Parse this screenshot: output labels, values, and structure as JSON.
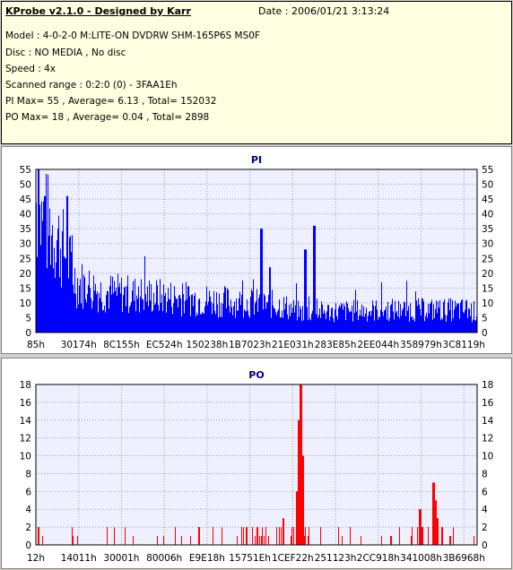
{
  "header": {
    "title": "KProbe v2.1.0 - Designed by Karr",
    "date": "Date : 2006/01/21 3:13:24",
    "lines": [
      "Model : 4-0-2-0 M:LITE-ON DVDRW SHM-165P6S MS0F",
      "Disc : NO MEDIA , No disc",
      "Speed : 4x",
      "Scanned range : 0:2:0 (0) - 3FAA1Eh",
      "PI Max= 55 , Average= 6.13 , Total= 152032",
      "PO Max= 18 , Average= 0.04 , Total= 2898"
    ]
  },
  "chart_data": [
    {
      "type": "bar",
      "title": "PI",
      "color": "#0000ff",
      "ylim": [
        0,
        55
      ],
      "yticks": [
        0,
        5,
        10,
        15,
        20,
        25,
        30,
        35,
        40,
        45,
        50,
        55
      ],
      "xticks": [
        "85h",
        "30174h",
        "8C155h",
        "EC524h",
        "150238h",
        "1B7023h",
        "21E031h",
        "283E85h",
        "2EE044h",
        "358979h",
        "3C8119h"
      ],
      "profile": [
        [
          0,
          52
        ],
        [
          0.01,
          45
        ],
        [
          0.04,
          40
        ],
        [
          0.07,
          30
        ],
        [
          0.09,
          20
        ],
        [
          0.15,
          16
        ],
        [
          0.3,
          14
        ],
        [
          0.45,
          12
        ],
        [
          0.55,
          11
        ],
        [
          0.6,
          8
        ],
        [
          0.8,
          9
        ],
        [
          0.97,
          9
        ],
        [
          1,
          8
        ]
      ],
      "spikes": [
        [
          0.005,
          55
        ],
        [
          0.02,
          46
        ],
        [
          0.07,
          46
        ],
        [
          0.51,
          35
        ],
        [
          0.63,
          36
        ],
        [
          0.61,
          28
        ],
        [
          0.53,
          22
        ]
      ]
    },
    {
      "type": "bar",
      "title": "PO",
      "color": "#ff0000",
      "ylim": [
        0,
        18
      ],
      "yticks": [
        0,
        2,
        4,
        6,
        8,
        10,
        12,
        14,
        16,
        18
      ],
      "xticks": [
        "12h",
        "14011h",
        "30001h",
        "80006h",
        "E9E18h",
        "15751Eh",
        "1CEF22h",
        "251123h",
        "2CC918h",
        "341008h",
        "3B6968h"
      ],
      "spikes": [
        [
          0.6,
          18
        ],
        [
          0.595,
          14
        ],
        [
          0.605,
          10
        ],
        [
          0.59,
          6
        ],
        [
          0.56,
          3
        ],
        [
          0.9,
          7
        ],
        [
          0.905,
          5
        ],
        [
          0.91,
          3
        ],
        [
          0.005,
          2
        ],
        [
          0.87,
          4
        ]
      ]
    }
  ]
}
